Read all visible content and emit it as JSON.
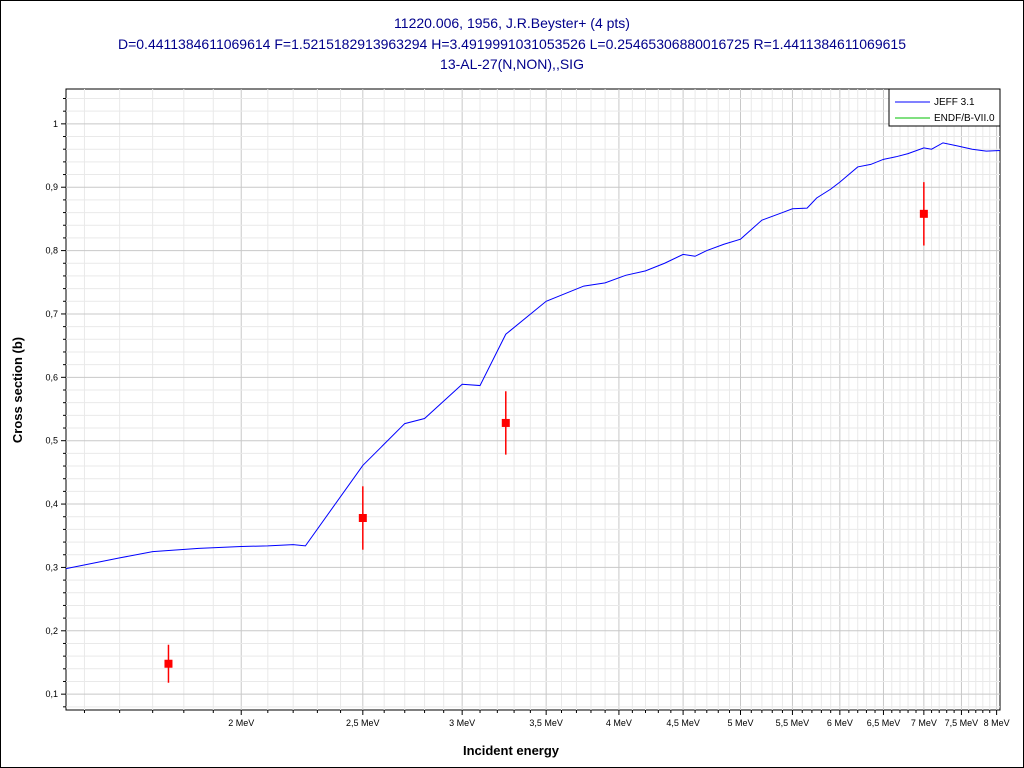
{
  "chart_data": {
    "type": "line",
    "title_lines": [
      "11220.006, 1956, J.R.Beyster+ (4 pts)",
      "D=0.4411384611069614 F=1.5215182913963294 H=3.4919991031053526 L=0.25465306880016725 R=1.4411384611069615",
      "13-AL-27(N,NON),,SIG"
    ],
    "xlabel": "Incident energy",
    "ylabel": "Cross section (b)",
    "x_scale": "log",
    "x_unit": "MeV",
    "xlim": [
      1.45,
      8.05
    ],
    "ylim": [
      0.075,
      1.055
    ],
    "grid": true,
    "legend_position": "top-right",
    "x_ticks": [
      {
        "value": 2.0,
        "label": "2 MeV"
      },
      {
        "value": 2.5,
        "label": "2,5 MeV"
      },
      {
        "value": 3.0,
        "label": "3 MeV"
      },
      {
        "value": 3.5,
        "label": "3,5 MeV"
      },
      {
        "value": 4.0,
        "label": "4 MeV"
      },
      {
        "value": 4.5,
        "label": "4,5 MeV"
      },
      {
        "value": 5.0,
        "label": "5 MeV"
      },
      {
        "value": 5.5,
        "label": "5,5 MeV"
      },
      {
        "value": 6.0,
        "label": "6 MeV"
      },
      {
        "value": 6.5,
        "label": "6,5 MeV"
      },
      {
        "value": 7.0,
        "label": "7 MeV"
      },
      {
        "value": 7.5,
        "label": "7,5 MeV"
      },
      {
        "value": 8.0,
        "label": "8 MeV"
      }
    ],
    "y_ticks": [
      {
        "value": 0.1,
        "label": "0,1"
      },
      {
        "value": 0.2,
        "label": "0,2"
      },
      {
        "value": 0.3,
        "label": "0,3"
      },
      {
        "value": 0.4,
        "label": "0,4"
      },
      {
        "value": 0.5,
        "label": "0,5"
      },
      {
        "value": 0.6,
        "label": "0,6"
      },
      {
        "value": 0.7,
        "label": "0,7"
      },
      {
        "value": 0.8,
        "label": "0,8"
      },
      {
        "value": 0.9,
        "label": "0,9"
      },
      {
        "value": 1.0,
        "label": "1"
      }
    ],
    "series": [
      {
        "name": "JEFF 3.1",
        "color": "#0000ff",
        "x": [
          1.45,
          1.6,
          1.7,
          1.85,
          2.0,
          2.1,
          2.2,
          2.25,
          2.5,
          2.7,
          2.8,
          3.0,
          3.1,
          3.25,
          3.5,
          3.75,
          3.9,
          4.05,
          4.2,
          4.35,
          4.5,
          4.6,
          4.7,
          4.85,
          5.0,
          5.2,
          5.4,
          5.5,
          5.65,
          5.75,
          5.9,
          6.0,
          6.2,
          6.35,
          6.5,
          6.65,
          6.8,
          7.0,
          7.1,
          7.25,
          7.45,
          7.65,
          7.85,
          8.05
        ],
        "y": [
          0.298,
          0.315,
          0.325,
          0.33,
          0.333,
          0.334,
          0.336,
          0.334,
          0.461,
          0.527,
          0.535,
          0.589,
          0.587,
          0.668,
          0.72,
          0.744,
          0.749,
          0.761,
          0.768,
          0.78,
          0.794,
          0.791,
          0.8,
          0.81,
          0.818,
          0.848,
          0.86,
          0.866,
          0.867,
          0.883,
          0.897,
          0.908,
          0.932,
          0.936,
          0.944,
          0.948,
          0.953,
          0.962,
          0.96,
          0.97,
          0.965,
          0.96,
          0.957,
          0.958
        ]
      },
      {
        "name": "ENDF/B-VII.0",
        "color": "#00c000",
        "x": [],
        "y": []
      }
    ],
    "points": {
      "color": "#ff0000",
      "x": [
        1.75,
        2.5,
        3.25,
        7.0
      ],
      "y": [
        0.148,
        0.378,
        0.528,
        0.858
      ],
      "y_err": [
        0.03,
        0.05,
        0.05,
        0.05
      ]
    }
  }
}
